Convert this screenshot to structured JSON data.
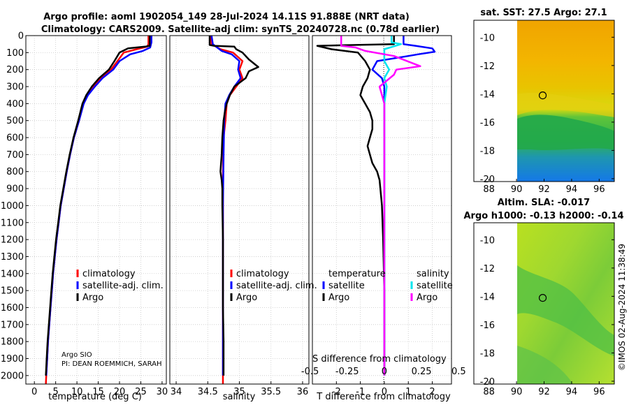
{
  "titles": {
    "line1": "Argo profile: aoml 1902054_149 28-Jul-2024 14.11S 91.888E (NRT data)",
    "line2": "Climatology: CARS2009. Satellite-adj clim: synTS_20240728.nc (0.78d earlier)"
  },
  "depth_ticks": [
    0,
    100,
    200,
    300,
    400,
    500,
    600,
    700,
    800,
    900,
    1000,
    1100,
    1200,
    1300,
    1400,
    1500,
    1600,
    1700,
    1800,
    1900,
    2000
  ],
  "colors": {
    "climatology": "#ff0000",
    "satellite_adj": "#0000ff",
    "argo": "#000000",
    "salinity_sat": "#00e5ee",
    "salinity_argo": "#ff00ff"
  },
  "chart_data": [
    {
      "id": "temperature",
      "type": "line",
      "xlabel": "temperature (deg C)",
      "xlim": [
        -2,
        31
      ],
      "ylim": [
        2050,
        0
      ],
      "xticks": [
        0,
        5,
        10,
        15,
        20,
        25,
        30
      ],
      "xtick_labels": [
        "0",
        "5",
        "10",
        "15",
        "20",
        "25",
        "30"
      ],
      "legend": [
        "climatology",
        "satellite-adj. clim.",
        "Argo"
      ],
      "credit": [
        "Argo SIO",
        "PI: DEAN ROEMMICH, SARAH"
      ],
      "series": [
        {
          "name": "climatology",
          "color": "#ff0000",
          "points": [
            [
              26.8,
              0
            ],
            [
              26.8,
              50
            ],
            [
              26.5,
              65
            ],
            [
              24,
              80
            ],
            [
              21,
              100
            ],
            [
              19.5,
              150
            ],
            [
              18,
              200
            ],
            [
              15.5,
              250
            ],
            [
              14,
              300
            ],
            [
              12.5,
              350
            ],
            [
              11.5,
              400
            ],
            [
              10.5,
              500
            ],
            [
              9.3,
              600
            ],
            [
              8.4,
              700
            ],
            [
              7.6,
              800
            ],
            [
              6.9,
              900
            ],
            [
              6.2,
              1000
            ],
            [
              5.7,
              1100
            ],
            [
              5.2,
              1200
            ],
            [
              4.8,
              1300
            ],
            [
              4.4,
              1400
            ],
            [
              4.1,
              1500
            ],
            [
              3.8,
              1600
            ],
            [
              3.5,
              1700
            ],
            [
              3.2,
              1800
            ],
            [
              3,
              1900
            ],
            [
              2.8,
              2000
            ],
            [
              2.7,
              2050
            ]
          ]
        },
        {
          "name": "satellite-adj. clim.",
          "color": "#0000ff",
          "points": [
            [
              27.5,
              0
            ],
            [
              27.5,
              40
            ],
            [
              27.2,
              70
            ],
            [
              25.5,
              90
            ],
            [
              22.5,
              110
            ],
            [
              20,
              150
            ],
            [
              18.5,
              200
            ],
            [
              16,
              250
            ],
            [
              14.2,
              300
            ],
            [
              12.6,
              350
            ],
            [
              11.6,
              400
            ],
            [
              10.5,
              500
            ],
            [
              9.3,
              600
            ],
            [
              8.4,
              700
            ],
            [
              7.6,
              800
            ],
            [
              6.9,
              900
            ],
            [
              6.2,
              1000
            ],
            [
              5.7,
              1100
            ],
            [
              5.2,
              1200
            ],
            [
              4.8,
              1300
            ],
            [
              4.4,
              1400
            ],
            [
              4.1,
              1500
            ],
            [
              3.8,
              1600
            ],
            [
              3.5,
              1700
            ],
            [
              3.2,
              1800
            ],
            [
              3,
              1900
            ],
            [
              2.8,
              2000
            ]
          ]
        },
        {
          "name": "Argo",
          "color": "#000000",
          "points": [
            [
              27.1,
              0
            ],
            [
              27.1,
              60
            ],
            [
              26,
              65
            ],
            [
              22,
              75
            ],
            [
              20,
              100
            ],
            [
              18.8,
              150
            ],
            [
              17.5,
              200
            ],
            [
              15.2,
              250
            ],
            [
              13.5,
              300
            ],
            [
              12.2,
              350
            ],
            [
              11.3,
              400
            ],
            [
              10.3,
              500
            ],
            [
              9.2,
              600
            ],
            [
              8.3,
              700
            ],
            [
              7.5,
              800
            ],
            [
              6.8,
              900
            ],
            [
              6.1,
              1000
            ],
            [
              5.6,
              1100
            ],
            [
              5.1,
              1200
            ],
            [
              4.7,
              1300
            ],
            [
              4.3,
              1400
            ],
            [
              4,
              1500
            ],
            [
              3.7,
              1600
            ],
            [
              3.4,
              1700
            ],
            [
              3.1,
              1800
            ],
            [
              2.9,
              1900
            ],
            [
              2.7,
              2000
            ]
          ]
        }
      ]
    },
    {
      "id": "salinity",
      "type": "line",
      "xlabel": "salinity",
      "xlim": [
        33.9,
        36.1
      ],
      "ylim": [
        2050,
        0
      ],
      "xticks": [
        34,
        34.5,
        35,
        35.5,
        36
      ],
      "xtick_labels": [
        "34",
        "34.5",
        "35",
        "35.5",
        "36"
      ],
      "legend": [
        "climatology",
        "satellite-adj. clim.",
        "Argo"
      ],
      "series": [
        {
          "name": "climatology",
          "color": "#ff0000",
          "points": [
            [
              34.55,
              0
            ],
            [
              34.56,
              50
            ],
            [
              34.7,
              80
            ],
            [
              34.9,
              100
            ],
            [
              35.05,
              150
            ],
            [
              35.0,
              200
            ],
            [
              35.05,
              250
            ],
            [
              34.95,
              300
            ],
            [
              34.85,
              350
            ],
            [
              34.8,
              400
            ],
            [
              34.78,
              500
            ],
            [
              34.75,
              600
            ],
            [
              34.74,
              800
            ],
            [
              34.74,
              1000
            ],
            [
              34.74,
              1200
            ],
            [
              34.74,
              1400
            ],
            [
              34.74,
              1600
            ],
            [
              34.74,
              1800
            ],
            [
              34.74,
              2000
            ],
            [
              34.74,
              2050
            ]
          ]
        },
        {
          "name": "satellite-adj. clim.",
          "color": "#0000ff",
          "points": [
            [
              34.56,
              0
            ],
            [
              34.58,
              50
            ],
            [
              34.72,
              90
            ],
            [
              34.88,
              110
            ],
            [
              35.0,
              150
            ],
            [
              34.98,
              200
            ],
            [
              35.02,
              250
            ],
            [
              34.92,
              300
            ],
            [
              34.84,
              350
            ],
            [
              34.78,
              400
            ],
            [
              34.76,
              500
            ],
            [
              34.75,
              700
            ],
            [
              34.74,
              1000
            ],
            [
              34.74,
              1500
            ],
            [
              34.74,
              2000
            ]
          ]
        },
        {
          "name": "Argo",
          "color": "#000000",
          "points": [
            [
              34.53,
              0
            ],
            [
              34.53,
              55
            ],
            [
              34.6,
              60
            ],
            [
              34.92,
              65
            ],
            [
              34.95,
              80
            ],
            [
              35.05,
              100
            ],
            [
              35.15,
              140
            ],
            [
              35.3,
              185
            ],
            [
              35.15,
              210
            ],
            [
              35.1,
              250
            ],
            [
              34.92,
              300
            ],
            [
              34.85,
              350
            ],
            [
              34.8,
              400
            ],
            [
              34.77,
              450
            ],
            [
              34.75,
              500
            ],
            [
              34.73,
              600
            ],
            [
              34.72,
              700
            ],
            [
              34.7,
              800
            ],
            [
              34.72,
              850
            ],
            [
              34.73,
              900
            ],
            [
              34.73,
              1000
            ],
            [
              34.74,
              1200
            ],
            [
              34.74,
              1400
            ],
            [
              34.74,
              1600
            ],
            [
              34.75,
              1800
            ],
            [
              34.75,
              1900
            ],
            [
              34.75,
              2000
            ]
          ]
        }
      ]
    },
    {
      "id": "difference",
      "type": "line",
      "xlabel": "T difference from climatology",
      "xlabel_salinity": "S difference from climatology",
      "xlim": [
        -3,
        2.8
      ],
      "ylim": [
        2050,
        0
      ],
      "xticks": [
        -2,
        -1,
        0,
        1,
        2
      ],
      "xtick_labels": [
        "-2",
        "-1",
        "0",
        "1",
        "2"
      ],
      "salinity_ticks": [
        -0.5,
        -0.25,
        0,
        0.25,
        0.5
      ],
      "salinity_tick_labels": [
        "-0.5",
        "-0.25",
        "0",
        "0.25",
        "0.5"
      ],
      "legend_headers": [
        "temperature",
        "salinity"
      ],
      "legend": [
        "satellite",
        "Argo",
        "satellite",
        "Argo"
      ],
      "series": [
        {
          "name": "T satellite",
          "color": "#0000ff",
          "points": [
            [
              0.8,
              0
            ],
            [
              0.8,
              50
            ],
            [
              1.3,
              60
            ],
            [
              2.0,
              75
            ],
            [
              2.1,
              95
            ],
            [
              1.4,
              110
            ],
            [
              1.0,
              120
            ],
            [
              -0.3,
              150
            ],
            [
              -0.5,
              200
            ],
            [
              -0.1,
              250
            ],
            [
              0,
              300
            ],
            [
              0,
              400
            ],
            [
              0,
              600
            ],
            [
              0,
              1000
            ],
            [
              0,
              1400
            ],
            [
              0,
              1800
            ],
            [
              0,
              2000
            ]
          ]
        },
        {
          "name": "T Argo",
          "color": "#000000",
          "points": [
            [
              0.4,
              0
            ],
            [
              0.4,
              50
            ],
            [
              -2.8,
              60
            ],
            [
              -2.2,
              80
            ],
            [
              -1.1,
              100
            ],
            [
              -0.8,
              150
            ],
            [
              -0.6,
              200
            ],
            [
              -0.7,
              250
            ],
            [
              -0.9,
              300
            ],
            [
              -1.0,
              350
            ],
            [
              -0.8,
              400
            ],
            [
              -0.6,
              450
            ],
            [
              -0.5,
              500
            ],
            [
              -0.5,
              550
            ],
            [
              -0.6,
              600
            ],
            [
              -0.7,
              650
            ],
            [
              -0.6,
              700
            ],
            [
              -0.5,
              750
            ],
            [
              -0.3,
              800
            ],
            [
              -0.2,
              850
            ],
            [
              -0.1,
              1000
            ],
            [
              -0.05,
              1200
            ],
            [
              0,
              1500
            ],
            [
              0,
              1800
            ],
            [
              0,
              2000
            ]
          ]
        },
        {
          "name": "S satellite",
          "color": "#00e5ee",
          "points": [
            [
              0.3,
              0
            ],
            [
              0.3,
              40
            ],
            [
              0.7,
              50
            ],
            [
              0,
              80
            ],
            [
              0,
              150
            ],
            [
              0.2,
              200
            ],
            [
              0,
              250
            ],
            [
              0.1,
              300
            ],
            [
              0,
              400
            ],
            [
              0,
              600
            ],
            [
              0,
              1000
            ],
            [
              0,
              1500
            ],
            [
              0,
              2000
            ]
          ]
        },
        {
          "name": "S Argo",
          "color": "#ff00ff",
          "points": [
            [
              -1.8,
              0
            ],
            [
              -1.8,
              60
            ],
            [
              -1.2,
              70
            ],
            [
              -0.8,
              90
            ],
            [
              0.4,
              120
            ],
            [
              1.5,
              180
            ],
            [
              0.5,
              200
            ],
            [
              0.4,
              230
            ],
            [
              -0.2,
              300
            ],
            [
              -0.1,
              350
            ],
            [
              0,
              400
            ],
            [
              0,
              700
            ],
            [
              0,
              1000
            ],
            [
              0,
              1500
            ],
            [
              0,
              2000
            ]
          ]
        }
      ]
    }
  ],
  "maps": [
    {
      "id": "sst",
      "title_lines": [
        "sat. SST: 27.5 Argo: 27.1"
      ],
      "xticks": [
        88,
        90,
        92,
        94,
        96
      ],
      "yticks": [
        -10,
        -12,
        -14,
        -16,
        -18,
        -20
      ],
      "lon_range": [
        86.9,
        97.1
      ],
      "lat_range": [
        -20.2,
        -8.8
      ],
      "data_lon_start": 90,
      "argo_point": [
        91.9,
        -14.11
      ],
      "colormap": "orange-top, yellow band, green middle, blue bottom"
    },
    {
      "id": "sla",
      "title_lines": [
        "Altim. SLA: -0.017",
        "Argo h1000: -0.13 h2000: -0.14"
      ],
      "xticks": [
        88,
        90,
        92,
        94,
        96
      ],
      "yticks": [
        -10,
        -12,
        -14,
        -16,
        -18,
        -20
      ],
      "lon_range": [
        86.9,
        97.1
      ],
      "lat_range": [
        -20.2,
        -8.8
      ],
      "data_lon_start": 90,
      "argo_point": [
        91.9,
        -14.11
      ],
      "colormap": "yellow-green field with green patches"
    }
  ],
  "footer": "©IMOS 02-Aug-2024 11:38:49"
}
